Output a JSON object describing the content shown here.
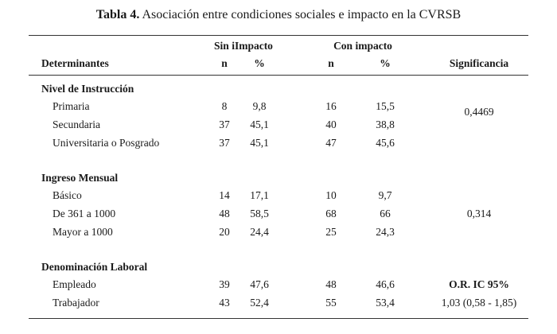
{
  "caption": {
    "label": "Tabla 4.",
    "text": "Asociación entre condiciones sociales e impacto en la CVRSB"
  },
  "headers": {
    "group_sin": "Sin iImpacto",
    "group_con": "Con impacto",
    "determinantes": "Determinantes",
    "n_sin": "n",
    "pct_sin": "%",
    "n_con": "n",
    "pct_con": "%",
    "significancia": "Significancia"
  },
  "sections": [
    {
      "title": "Nivel de Instrucción",
      "significance": "0,4469",
      "rows": [
        {
          "label": "Primaria",
          "n_sin": "8",
          "pct_sin": "9,8",
          "n_con": "16",
          "pct_con": "15,5"
        },
        {
          "label": "Secundaria",
          "n_sin": "37",
          "pct_sin": "45,1",
          "n_con": "40",
          "pct_con": "38,8"
        },
        {
          "label": "Universitaria o Posgrado",
          "n_sin": "37",
          "pct_sin": "45,1",
          "n_con": "47",
          "pct_con": "45,6"
        }
      ]
    },
    {
      "title": "Ingreso Mensual",
      "significance": "0,314",
      "rows": [
        {
          "label": "Básico",
          "n_sin": "14",
          "pct_sin": "17,1",
          "n_con": "10",
          "pct_con": "9,7"
        },
        {
          "label": "De 361 a 1000",
          "n_sin": "48",
          "pct_sin": "58,5",
          "n_con": "68",
          "pct_con": "66"
        },
        {
          "label": "Mayor a 1000",
          "n_sin": "20",
          "pct_sin": "24,4",
          "n_con": "25",
          "pct_con": "24,3"
        }
      ]
    },
    {
      "title": "Denominación Laboral",
      "significance_head": "O.R.  IC 95%",
      "significance": "1,03 (0,58 - 1,85)",
      "rows": [
        {
          "label": "Empleado",
          "n_sin": "39",
          "pct_sin": "47,6",
          "n_con": "48",
          "pct_con": "46,6"
        },
        {
          "label": "Trabajador",
          "n_sin": "43",
          "pct_sin": "52,4",
          "n_con": "55",
          "pct_con": "53,4"
        }
      ]
    }
  ]
}
